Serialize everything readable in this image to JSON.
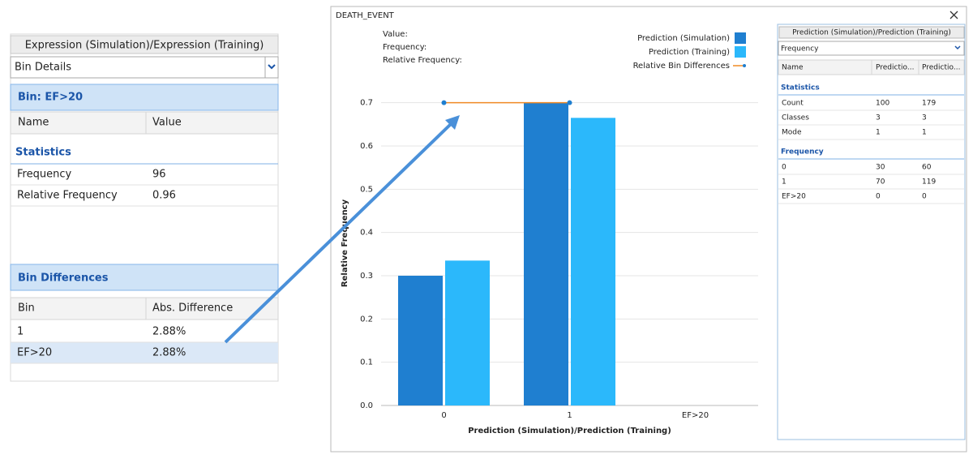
{
  "left_panel": {
    "button": "Expression (Simulation)/Expression (Training)",
    "dropdown": "Bin Details",
    "bin_title": "Bin: EF>20",
    "columns": [
      "Name",
      "Value"
    ],
    "section": "Statistics",
    "rows": [
      [
        "Frequency",
        96
      ],
      [
        "Relative Frequency",
        0.96
      ]
    ],
    "diff_title": "Bin Differences",
    "diff_columns": [
      "Bin",
      "Abs. Difference"
    ],
    "diff_rows": [
      [
        "1",
        "2.88%"
      ],
      [
        "EF>20",
        "2.88%"
      ]
    ]
  },
  "window": {
    "title": "DEATH_EVENT",
    "info": [
      "Value:",
      "Frequency:",
      "Relative Frequency:"
    ]
  },
  "chart_data": {
    "type": "bar",
    "x_label": "Prediction (Simulation)/Prediction (Training)",
    "y_label": "Relative Frequency",
    "categories": [
      "0",
      "1",
      "EF>20"
    ],
    "series": [
      {
        "name": "Prediction (Simulation)",
        "color": "#1f7fd0",
        "values": [
          0.3,
          0.7,
          0
        ]
      },
      {
        "name": "Prediction (Training)",
        "color": "#2bb8fb",
        "values": [
          0.335,
          0.665,
          0
        ]
      },
      {
        "name": "Relative Bin Differences",
        "type": "line",
        "color": "#f08a24",
        "marker_color": "#1f7fd0",
        "values": [
          0.7,
          0.7,
          null
        ]
      }
    ],
    "ylim": [
      0,
      0.75
    ],
    "yticks": [
      {
        "value": 0,
        "label": "0.0"
      },
      0.1,
      0.2,
      0.3,
      0.4,
      0.5,
      0.6,
      0.7
    ],
    "grid": true
  },
  "right_panel": {
    "button": "Prediction (Simulation)/Prediction (Training)",
    "dropdown": "Frequency",
    "columns": [
      "Name",
      "Predictio...",
      "Predictio..."
    ],
    "sections": [
      {
        "title": "Statistics",
        "rows": [
          [
            "Count",
            100,
            179
          ],
          [
            "Classes",
            3,
            3
          ],
          [
            "Mode",
            1,
            1
          ]
        ]
      },
      {
        "title": "Frequency",
        "rows": [
          [
            "0",
            30,
            60
          ],
          [
            "1",
            70,
            119
          ],
          [
            "EF>20",
            0,
            0
          ]
        ]
      }
    ]
  }
}
